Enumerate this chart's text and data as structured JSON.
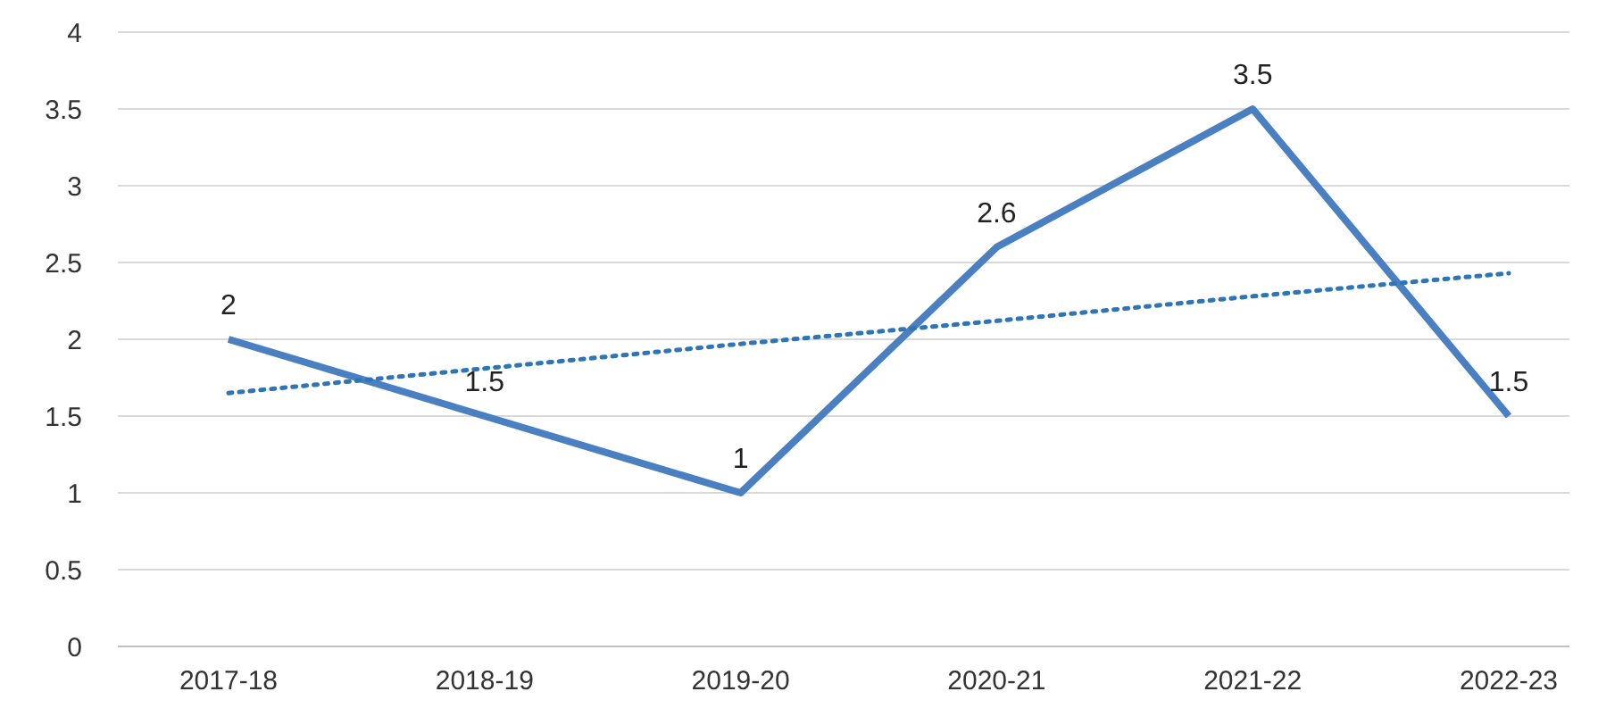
{
  "chart_data": {
    "type": "line",
    "categories": [
      "2017-18",
      "2018-19",
      "2019-20",
      "2020-21",
      "2021-22",
      "2022-23"
    ],
    "series": [
      {
        "color": "#4a7fc1",
        "values": [
          2,
          1.5,
          1,
          2.6,
          3.5,
          1.5
        ],
        "data_labels": true,
        "line_style": "solid"
      },
      {
        "color": "#2e75b6",
        "values": [
          1.65,
          1.81,
          1.97,
          2.12,
          2.28,
          2.43
        ],
        "line_style": "dotted"
      }
    ],
    "ylim": [
      0,
      4
    ],
    "yticks": [
      0,
      0.5,
      1,
      1.5,
      2,
      2.5,
      3,
      3.5,
      4
    ],
    "grid": "y"
  }
}
